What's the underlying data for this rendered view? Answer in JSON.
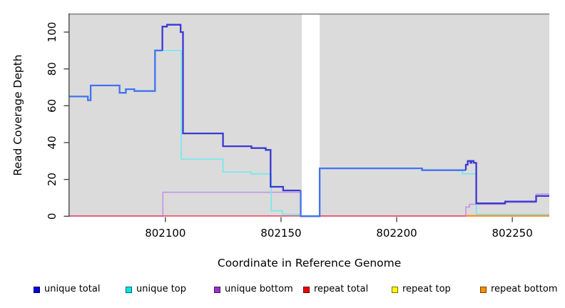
{
  "chart_data": {
    "type": "line",
    "title": "",
    "xlabel": "Coordinate in Reference Genome",
    "ylabel": "Read Coverage Depth",
    "xlim": [
      802058.5,
      802266
    ],
    "ylim": [
      0,
      108
    ],
    "x_ticks": [
      802100,
      802150,
      802200,
      802250
    ],
    "y_ticks": [
      0,
      20,
      40,
      60,
      80,
      100
    ],
    "grid": false,
    "legend_position": "bottom",
    "plot_background": "#DBDBDB",
    "top_border_color": "#8F8F8F",
    "gap_region": [
      802159,
      802166.7
    ],
    "shaded_regions": [
      [
        802058.5,
        802159
      ],
      [
        802166.7,
        802266
      ]
    ],
    "series": [
      {
        "name": "unique bottom",
        "color": "#C494E2",
        "width": 1.6,
        "steps": [
          [
            802058.5,
            0
          ],
          [
            802098.9,
            13
          ],
          [
            802158.5,
            0
          ],
          [
            802229.9,
            5
          ],
          [
            802231.5,
            6.5
          ],
          [
            802246.9,
            7.5
          ],
          [
            802260.3,
            12
          ],
          [
            802266,
            12
          ]
        ]
      },
      {
        "name": "repeat top",
        "color": "#FFFF00",
        "width": 1.4,
        "steps": [
          [
            802058.5,
            0.15
          ],
          [
            802266,
            0.15
          ]
        ]
      },
      {
        "name": "repeat total",
        "color": "#E8587F",
        "width": 1.7,
        "steps": [
          [
            802058.5,
            0.15
          ],
          [
            802266,
            0.15
          ]
        ]
      },
      {
        "name": "repeat bottom",
        "color": "#FF9015",
        "width": 1.8,
        "steps": [
          [
            802058.5,
            null
          ],
          [
            802099.4,
            0.3
          ],
          [
            802159,
            null
          ],
          [
            802229.9,
            0.3
          ],
          [
            802266,
            0.3
          ]
        ]
      },
      {
        "name": "unique top",
        "color": "#73E9F0",
        "width": 1.7,
        "steps": [
          [
            802058.5,
            65
          ],
          [
            802066.5,
            63
          ],
          [
            802067.7,
            71
          ],
          [
            802080.2,
            67
          ],
          [
            802082.9,
            69
          ],
          [
            802086.6,
            68
          ],
          [
            802095.5,
            90
          ],
          [
            802106.9,
            31
          ],
          [
            802124.9,
            24
          ],
          [
            802137.2,
            23
          ],
          [
            802145.8,
            3
          ],
          [
            802150.6,
            1
          ],
          [
            802158.5,
            0
          ],
          [
            802166.7,
            26
          ],
          [
            802211,
            25
          ],
          [
            802228.4,
            23
          ],
          [
            802234.4,
            1
          ],
          [
            802266,
            1
          ]
        ]
      },
      {
        "name": "unique total",
        "color": "#3B38D2",
        "color_when_equal_top": "#4273F0",
        "width": 2.3,
        "steps": [
          [
            802058.5,
            65
          ],
          [
            802066.5,
            63
          ],
          [
            802067.7,
            71
          ],
          [
            802080.2,
            67
          ],
          [
            802082.9,
            69
          ],
          [
            802086.6,
            68
          ],
          [
            802095.5,
            90
          ],
          [
            802098.7,
            103
          ],
          [
            802100.7,
            104
          ],
          [
            802106.6,
            100
          ],
          [
            802107.6,
            45
          ],
          [
            802124.9,
            38
          ],
          [
            802137.2,
            37
          ],
          [
            802143.4,
            36
          ],
          [
            802145.5,
            16
          ],
          [
            802150.9,
            14
          ],
          [
            802158.5,
            0
          ],
          [
            802166.7,
            26
          ],
          [
            802211,
            25
          ],
          [
            802229.9,
            28
          ],
          [
            802230.7,
            30
          ],
          [
            802231.9,
            29
          ],
          [
            802232.3,
            30
          ],
          [
            802233.3,
            29
          ],
          [
            802234.4,
            7
          ],
          [
            802246.9,
            8
          ],
          [
            802260.3,
            11
          ],
          [
            802266,
            11
          ]
        ]
      }
    ]
  },
  "legend": {
    "items": [
      {
        "label": "unique total",
        "color": "#0000E0"
      },
      {
        "label": "unique top",
        "color": "#00E5E5"
      },
      {
        "label": "unique bottom",
        "color": "#9932CC"
      },
      {
        "label": "repeat total",
        "color": "#EE0000"
      },
      {
        "label": "repeat top",
        "color": "#FFFF00"
      },
      {
        "label": "repeat bottom",
        "color": "#FF9100"
      }
    ]
  }
}
